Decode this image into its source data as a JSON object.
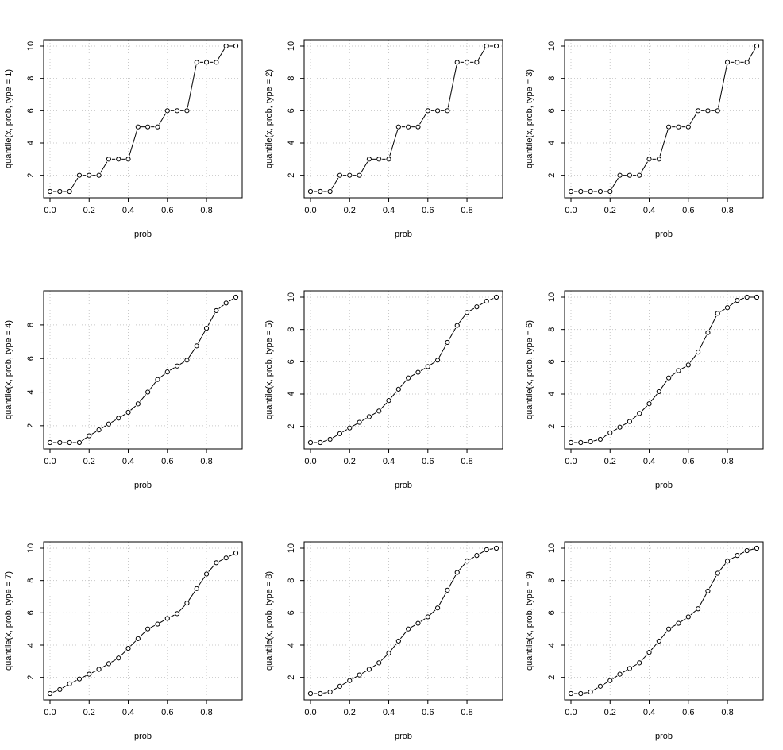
{
  "chart_data": [
    {
      "type": "line",
      "xlabel": "prob",
      "ylabel": "quantile(x, prob, type = 1)",
      "grid": true,
      "x": [
        0,
        0.05,
        0.1,
        0.15,
        0.2,
        0.25,
        0.3,
        0.35,
        0.4,
        0.45,
        0.5,
        0.55,
        0.6,
        0.65,
        0.7,
        0.75,
        0.8,
        0.85,
        0.9,
        0.95
      ],
      "values": [
        1,
        1,
        1,
        2,
        2,
        2,
        3,
        3,
        3,
        5,
        5,
        5,
        6,
        6,
        6,
        9,
        9,
        9,
        10,
        10
      ],
      "xlim": [
        0,
        0.95
      ],
      "ylim": [
        1,
        10
      ],
      "xticks": [
        "0.0",
        "0.2",
        "0.4",
        "0.6",
        "0.8"
      ],
      "yticks": [
        "2",
        "4",
        "6",
        "8",
        "10"
      ]
    },
    {
      "type": "line",
      "xlabel": "prob",
      "ylabel": "quantile(x, prob, type = 2)",
      "grid": true,
      "x": [
        0,
        0.05,
        0.1,
        0.15,
        0.2,
        0.25,
        0.3,
        0.35,
        0.4,
        0.45,
        0.5,
        0.55,
        0.6,
        0.65,
        0.7,
        0.75,
        0.8,
        0.85,
        0.9,
        0.95
      ],
      "values": [
        1,
        1,
        1,
        2,
        2,
        2,
        3,
        3,
        3,
        5,
        5,
        5,
        6,
        6,
        6,
        9,
        9,
        9,
        10,
        10
      ],
      "xlim": [
        0,
        0.95
      ],
      "ylim": [
        1,
        10
      ],
      "xticks": [
        "0.0",
        "0.2",
        "0.4",
        "0.6",
        "0.8"
      ],
      "yticks": [
        "2",
        "4",
        "6",
        "8",
        "10"
      ]
    },
    {
      "type": "line",
      "xlabel": "prob",
      "ylabel": "quantile(x, prob, type = 3)",
      "grid": true,
      "x": [
        0,
        0.05,
        0.1,
        0.15,
        0.2,
        0.25,
        0.3,
        0.35,
        0.4,
        0.45,
        0.5,
        0.55,
        0.6,
        0.65,
        0.7,
        0.75,
        0.8,
        0.85,
        0.9,
        0.95
      ],
      "values": [
        1,
        1,
        1,
        1,
        1,
        2,
        2,
        2,
        3,
        3,
        5,
        5,
        5,
        6,
        6,
        6,
        9,
        9,
        9,
        10
      ],
      "xlim": [
        0,
        0.95
      ],
      "ylim": [
        1,
        10
      ],
      "xticks": [
        "0.0",
        "0.2",
        "0.4",
        "0.6",
        "0.8"
      ],
      "yticks": [
        "2",
        "4",
        "6",
        "8",
        "10"
      ]
    },
    {
      "type": "line",
      "xlabel": "prob",
      "ylabel": "quantile(x, prob, type = 4)",
      "grid": true,
      "x": [
        0,
        0.05,
        0.1,
        0.15,
        0.2,
        0.25,
        0.3,
        0.35,
        0.4,
        0.45,
        0.5,
        0.55,
        0.6,
        0.65,
        0.7,
        0.75,
        0.8,
        0.85,
        0.9,
        0.95
      ],
      "values": [
        1,
        1,
        1,
        1,
        1.4,
        1.75,
        2.1,
        2.45,
        2.8,
        3.3,
        4,
        4.75,
        5.2,
        5.55,
        5.9,
        6.75,
        7.8,
        8.85,
        9.3,
        9.65
      ],
      "xlim": [
        0,
        0.95
      ],
      "ylim": [
        1,
        9.65
      ],
      "xticks": [
        "0.0",
        "0.2",
        "0.4",
        "0.6",
        "0.8"
      ],
      "yticks": [
        "2",
        "4",
        "6",
        "8"
      ]
    },
    {
      "type": "line",
      "xlabel": "prob",
      "ylabel": "quantile(x, prob, type = 5)",
      "grid": true,
      "x": [
        0,
        0.05,
        0.1,
        0.15,
        0.2,
        0.25,
        0.3,
        0.35,
        0.4,
        0.45,
        0.5,
        0.55,
        0.6,
        0.65,
        0.7,
        0.75,
        0.8,
        0.85,
        0.9,
        0.95
      ],
      "values": [
        1,
        1,
        1.2,
        1.55,
        1.9,
        2.25,
        2.6,
        2.95,
        3.6,
        4.3,
        5,
        5.35,
        5.7,
        6.1,
        7.2,
        8.25,
        9.05,
        9.4,
        9.75,
        10
      ],
      "xlim": [
        0,
        0.95
      ],
      "ylim": [
        1,
        10
      ],
      "xticks": [
        "0.0",
        "0.2",
        "0.4",
        "0.6",
        "0.8"
      ],
      "yticks": [
        "2",
        "4",
        "6",
        "8",
        "10"
      ]
    },
    {
      "type": "line",
      "xlabel": "prob",
      "ylabel": "quantile(x, prob, type = 6)",
      "grid": true,
      "x": [
        0,
        0.05,
        0.1,
        0.15,
        0.2,
        0.25,
        0.3,
        0.35,
        0.4,
        0.45,
        0.5,
        0.55,
        0.6,
        0.65,
        0.7,
        0.75,
        0.8,
        0.85,
        0.9,
        0.95
      ],
      "values": [
        1,
        1,
        1.05,
        1.2,
        1.6,
        1.95,
        2.3,
        2.8,
        3.4,
        4.15,
        5,
        5.45,
        5.8,
        6.6,
        7.8,
        9,
        9.35,
        9.8,
        10,
        10
      ],
      "xlim": [
        0,
        0.95
      ],
      "ylim": [
        1,
        10
      ],
      "xticks": [
        "0.0",
        "0.2",
        "0.4",
        "0.6",
        "0.8"
      ],
      "yticks": [
        "2",
        "4",
        "6",
        "8",
        "10"
      ]
    },
    {
      "type": "line",
      "xlabel": "prob",
      "ylabel": "quantile(x, prob, type = 7)",
      "grid": true,
      "x": [
        0,
        0.05,
        0.1,
        0.15,
        0.2,
        0.25,
        0.3,
        0.35,
        0.4,
        0.45,
        0.5,
        0.55,
        0.6,
        0.65,
        0.7,
        0.75,
        0.8,
        0.85,
        0.9,
        0.95
      ],
      "values": [
        1,
        1.25,
        1.6,
        1.9,
        2.2,
        2.5,
        2.85,
        3.2,
        3.8,
        4.4,
        5,
        5.3,
        5.65,
        5.95,
        6.6,
        7.5,
        8.4,
        9.1,
        9.4,
        9.7
      ],
      "xlim": [
        0,
        0.95
      ],
      "ylim": [
        1,
        10
      ],
      "xticks": [
        "0.0",
        "0.2",
        "0.4",
        "0.6",
        "0.8"
      ],
      "yticks": [
        "2",
        "4",
        "6",
        "8",
        "10"
      ]
    },
    {
      "type": "line",
      "xlabel": "prob",
      "ylabel": "quantile(x, prob, type = 8)",
      "grid": true,
      "x": [
        0,
        0.05,
        0.1,
        0.15,
        0.2,
        0.25,
        0.3,
        0.35,
        0.4,
        0.45,
        0.5,
        0.55,
        0.6,
        0.65,
        0.7,
        0.75,
        0.8,
        0.85,
        0.9,
        0.95
      ],
      "values": [
        1,
        1,
        1.1,
        1.45,
        1.8,
        2.15,
        2.5,
        2.9,
        3.5,
        4.25,
        5,
        5.35,
        5.75,
        6.3,
        7.4,
        8.5,
        9.2,
        9.55,
        9.9,
        10
      ],
      "xlim": [
        0,
        0.95
      ],
      "ylim": [
        1,
        10
      ],
      "xticks": [
        "0.0",
        "0.2",
        "0.4",
        "0.6",
        "0.8"
      ],
      "yticks": [
        "2",
        "4",
        "6",
        "8",
        "10"
      ]
    },
    {
      "type": "line",
      "xlabel": "prob",
      "ylabel": "quantile(x, prob, type = 9)",
      "grid": true,
      "x": [
        0,
        0.05,
        0.1,
        0.15,
        0.2,
        0.25,
        0.3,
        0.35,
        0.4,
        0.45,
        0.5,
        0.55,
        0.6,
        0.65,
        0.7,
        0.75,
        0.8,
        0.85,
        0.9,
        0.95
      ],
      "values": [
        1,
        1,
        1.1,
        1.45,
        1.8,
        2.2,
        2.55,
        2.9,
        3.55,
        4.25,
        5,
        5.35,
        5.75,
        6.25,
        7.35,
        8.45,
        9.2,
        9.55,
        9.85,
        10
      ],
      "xlim": [
        0,
        0.95
      ],
      "ylim": [
        1,
        10
      ],
      "xticks": [
        "0.0",
        "0.2",
        "0.4",
        "0.6",
        "0.8"
      ],
      "yticks": [
        "2",
        "4",
        "6",
        "8",
        "10"
      ]
    }
  ]
}
